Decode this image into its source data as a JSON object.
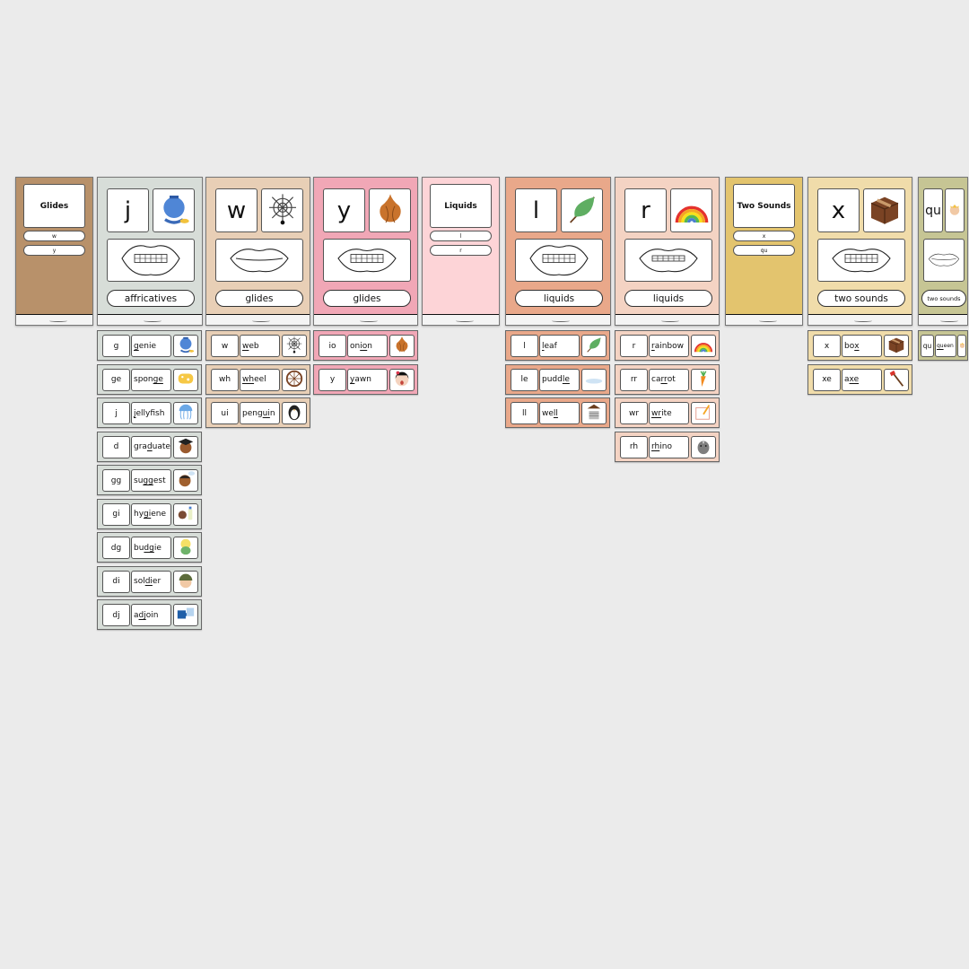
{
  "headers": [
    {
      "title": "Glides",
      "items": [
        "w",
        "y"
      ],
      "bg": "#b8916a",
      "col": 0
    },
    {
      "title": "Liquids",
      "items": [
        "l",
        "r"
      ],
      "bg": "#fdd4d7",
      "col": 4
    },
    {
      "title": "Two Sounds",
      "items": [
        "x",
        "qu"
      ],
      "bg": "#e3c46e",
      "col": 7
    }
  ],
  "cards": [
    {
      "letter": "j",
      "icon": "genie-icon",
      "label": "affricatives",
      "bg": "#d7ddd8",
      "mouth": "teeth-open",
      "col": 1
    },
    {
      "letter": "w",
      "icon": "spider-web-icon",
      "label": "glides",
      "bg": "#e8cfb6",
      "mouth": "lips-closed",
      "col": 2
    },
    {
      "letter": "y",
      "icon": "onion-icon",
      "label": "glides",
      "bg": "#f1a7b6",
      "mouth": "teeth-smile",
      "col": 3
    },
    {
      "letter": "l",
      "icon": "leaf-icon",
      "label": "liquids",
      "bg": "#e9a88a",
      "mouth": "teeth-open",
      "col": 5
    },
    {
      "letter": "r",
      "icon": "rainbow-icon",
      "label": "liquids",
      "bg": "#f4d3c3",
      "mouth": "teeth-small",
      "col": 6
    },
    {
      "letter": "x",
      "icon": "box-icon",
      "label": "two sounds",
      "bg": "#f0dcaa",
      "mouth": "teeth-smile",
      "col": 8
    },
    {
      "letter": "qu",
      "icon": "queen-icon",
      "label": "two sounds",
      "bg": "#c6c594",
      "mouth": "lips-closed",
      "col": 9
    }
  ],
  "strips": [
    {
      "col": 1,
      "bg": "#d7ddd8",
      "rows": [
        {
          "g": "g",
          "pre": "",
          "u": "g",
          "post": "enie",
          "icon": "genie-icon"
        },
        {
          "g": "ge",
          "pre": "spon",
          "u": "ge",
          "post": "",
          "icon": "sponge-icon"
        },
        {
          "g": "j",
          "pre": "",
          "u": "j",
          "post": "ellyfish",
          "icon": "jellyfish-icon"
        },
        {
          "g": "d",
          "pre": "gra",
          "u": "d",
          "post": "uate",
          "icon": "graduate-icon"
        },
        {
          "g": "gg",
          "pre": "su",
          "u": "gg",
          "post": "est",
          "icon": "suggest-icon"
        },
        {
          "g": "gi",
          "pre": "hy",
          "u": "gi",
          "post": "ene",
          "icon": "hygiene-icon"
        },
        {
          "g": "dg",
          "pre": "bu",
          "u": "dg",
          "post": "ie",
          "icon": "budgie-icon"
        },
        {
          "g": "di",
          "pre": "sol",
          "u": "di",
          "post": "er",
          "icon": "soldier-icon"
        },
        {
          "g": "dj",
          "pre": "a",
          "u": "dj",
          "post": "oin",
          "icon": "puzzle-icon"
        }
      ]
    },
    {
      "col": 2,
      "bg": "#e8cfb6",
      "rows": [
        {
          "g": "w",
          "pre": "",
          "u": "w",
          "post": "eb",
          "icon": "spider-web-icon"
        },
        {
          "g": "wh",
          "pre": "",
          "u": "wh",
          "post": "eel",
          "icon": "wheel-icon"
        },
        {
          "g": "ui",
          "pre": "peng",
          "u": "ui",
          "post": "n",
          "icon": "penguin-icon"
        }
      ]
    },
    {
      "col": 3,
      "bg": "#f1a7b6",
      "rows": [
        {
          "g": "io",
          "pre": "on",
          "u": "io",
          "post": "n",
          "icon": "onion-icon"
        },
        {
          "g": "y",
          "pre": "",
          "u": "y",
          "post": "awn",
          "icon": "yawn-icon"
        }
      ]
    },
    {
      "col": 5,
      "bg": "#e9a88a",
      "rows": [
        {
          "g": "l",
          "pre": "",
          "u": "l",
          "post": "eaf",
          "icon": "leaf-icon"
        },
        {
          "g": "le",
          "pre": "pudd",
          "u": "le",
          "post": "",
          "icon": "puddle-icon"
        },
        {
          "g": "ll",
          "pre": "we",
          "u": "ll",
          "post": "",
          "icon": "well-icon"
        }
      ]
    },
    {
      "col": 6,
      "bg": "#f4d3c3",
      "rows": [
        {
          "g": "r",
          "pre": "",
          "u": "r",
          "post": "ainbow",
          "icon": "rainbow-icon"
        },
        {
          "g": "rr",
          "pre": "ca",
          "u": "rr",
          "post": "ot",
          "icon": "carrot-icon"
        },
        {
          "g": "wr",
          "pre": "",
          "u": "wr",
          "post": "ite",
          "icon": "write-icon"
        },
        {
          "g": "rh",
          "pre": "",
          "u": "rh",
          "post": "ino",
          "icon": "rhino-icon"
        }
      ]
    },
    {
      "col": 8,
      "bg": "#f0dcaa",
      "rows": [
        {
          "g": "x",
          "pre": "bo",
          "u": "x",
          "post": "",
          "icon": "box-icon"
        },
        {
          "g": "xe",
          "pre": "a",
          "u": "xe",
          "post": "",
          "icon": "axe-icon"
        }
      ]
    },
    {
      "col": 9,
      "bg": "#c6c594",
      "rows": [
        {
          "g": "qu",
          "pre": "",
          "u": "qu",
          "post": "een",
          "icon": "queen-icon"
        }
      ]
    }
  ]
}
